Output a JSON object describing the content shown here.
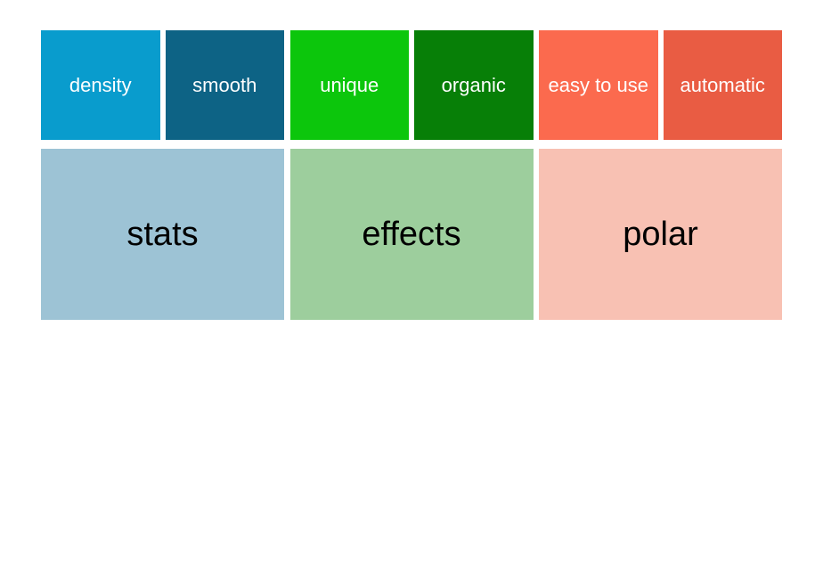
{
  "chart_data": {
    "type": "treemap",
    "title": "",
    "legend": "none",
    "grid": false,
    "background_color": "#ffffff",
    "groups": [
      {
        "label": "stats",
        "color": "#9dc3d5",
        "label_color": "#000000",
        "value": 2,
        "children": [
          {
            "label": "density",
            "color": "#099ccd",
            "label_color": "#ffffff",
            "value": 1
          },
          {
            "label": "smooth",
            "color": "#0d6385",
            "label_color": "#ffffff",
            "value": 1
          }
        ]
      },
      {
        "label": "effects",
        "color": "#9dce9d",
        "label_color": "#000000",
        "value": 2,
        "children": [
          {
            "label": "unique",
            "color": "#0cc60c",
            "label_color": "#ffffff",
            "value": 1
          },
          {
            "label": "organic",
            "color": "#077f07",
            "label_color": "#ffffff",
            "value": 1
          }
        ]
      },
      {
        "label": "polar",
        "color": "#f8c1b3",
        "label_color": "#000000",
        "value": 2,
        "children": [
          {
            "label": "easy to use",
            "color": "#fb6a4e",
            "label_color": "#ffffff",
            "value": 1
          },
          {
            "label": "automatic",
            "color": "#e95c43",
            "label_color": "#ffffff",
            "value": 1
          }
        ]
      }
    ]
  }
}
